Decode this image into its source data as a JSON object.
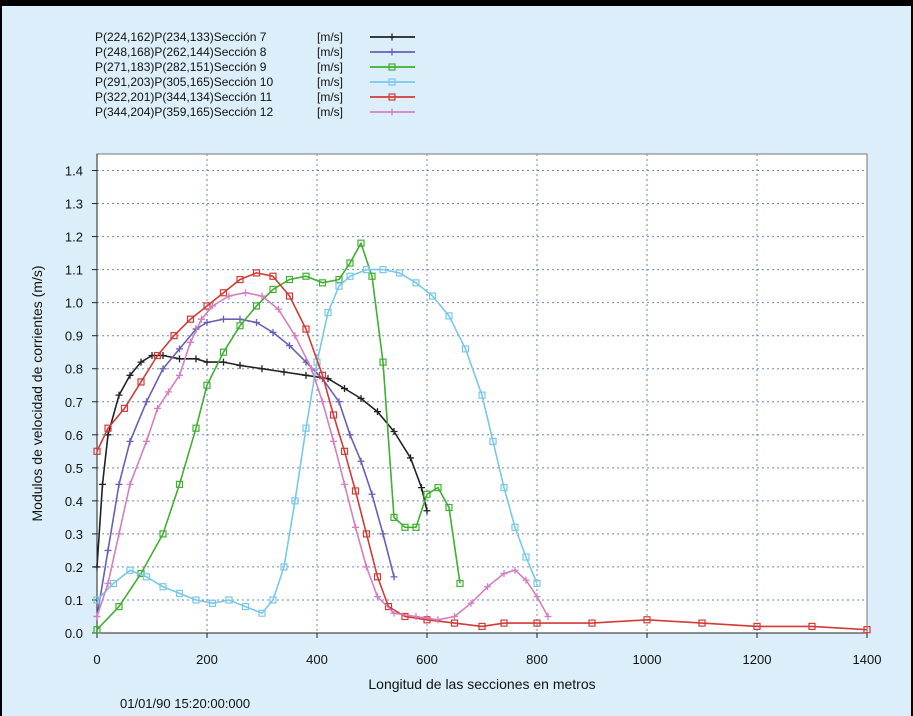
{
  "chart_data": {
    "type": "line",
    "xlabel": "Longitud de las secciones en metros",
    "ylabel": "Modulos de velocidad de corrientes  (m/s)",
    "xlim": [
      0,
      1400
    ],
    "ylim": [
      0,
      1.45
    ],
    "xticks": [
      "0",
      "200",
      "400",
      "600",
      "800",
      "1000",
      "1200",
      "1400"
    ],
    "yticks": [
      "0.0",
      "0.1",
      "0.2",
      "0.3",
      "0.4",
      "0.5",
      "0.6",
      "0.7",
      "0.8",
      "0.9",
      "1.0",
      "1.1",
      "1.2",
      "1.3",
      "1.4"
    ],
    "grid": true,
    "legend_position": "top-left",
    "footer": "01/01/90 15:20:00:000",
    "series": [
      {
        "name": "P(224,162)P(234,133)Sección 7",
        "unit": "[m/s]",
        "color": "#222222",
        "marker": "plus",
        "points": [
          [
            0,
            0.2
          ],
          [
            10,
            0.45
          ],
          [
            20,
            0.6
          ],
          [
            40,
            0.72
          ],
          [
            60,
            0.78
          ],
          [
            80,
            0.82
          ],
          [
            100,
            0.84
          ],
          [
            120,
            0.84
          ],
          [
            150,
            0.83
          ],
          [
            180,
            0.83
          ],
          [
            200,
            0.82
          ],
          [
            230,
            0.82
          ],
          [
            260,
            0.81
          ],
          [
            300,
            0.8
          ],
          [
            340,
            0.79
          ],
          [
            380,
            0.78
          ],
          [
            420,
            0.77
          ],
          [
            450,
            0.74
          ],
          [
            480,
            0.71
          ],
          [
            510,
            0.67
          ],
          [
            540,
            0.61
          ],
          [
            570,
            0.53
          ],
          [
            590,
            0.44
          ],
          [
            600,
            0.37
          ]
        ]
      },
      {
        "name": "P(248,168)P(262,144)Sección 8",
        "unit": "[m/s]",
        "color": "#6a5fb5",
        "marker": "plus",
        "points": [
          [
            0,
            0.05
          ],
          [
            20,
            0.25
          ],
          [
            40,
            0.45
          ],
          [
            60,
            0.58
          ],
          [
            90,
            0.7
          ],
          [
            120,
            0.8
          ],
          [
            150,
            0.86
          ],
          [
            180,
            0.92
          ],
          [
            200,
            0.94
          ],
          [
            230,
            0.95
          ],
          [
            260,
            0.95
          ],
          [
            290,
            0.94
          ],
          [
            320,
            0.91
          ],
          [
            350,
            0.87
          ],
          [
            380,
            0.82
          ],
          [
            410,
            0.77
          ],
          [
            440,
            0.7
          ],
          [
            460,
            0.6
          ],
          [
            480,
            0.52
          ],
          [
            500,
            0.42
          ],
          [
            520,
            0.3
          ],
          [
            540,
            0.17
          ]
        ]
      },
      {
        "name": "P(271,183)P(282,151)Sección 9",
        "unit": "[m/s]",
        "color": "#3fb02f",
        "marker": "square",
        "points": [
          [
            0,
            0.01
          ],
          [
            40,
            0.08
          ],
          [
            80,
            0.18
          ],
          [
            120,
            0.3
          ],
          [
            150,
            0.45
          ],
          [
            180,
            0.62
          ],
          [
            200,
            0.75
          ],
          [
            230,
            0.85
          ],
          [
            260,
            0.93
          ],
          [
            290,
            0.99
          ],
          [
            320,
            1.04
          ],
          [
            350,
            1.07
          ],
          [
            380,
            1.08
          ],
          [
            410,
            1.06
          ],
          [
            440,
            1.07
          ],
          [
            460,
            1.12
          ],
          [
            480,
            1.18
          ],
          [
            500,
            1.08
          ],
          [
            520,
            0.82
          ],
          [
            540,
            0.35
          ],
          [
            560,
            0.32
          ],
          [
            580,
            0.32
          ],
          [
            600,
            0.42
          ],
          [
            620,
            0.44
          ],
          [
            640,
            0.38
          ],
          [
            660,
            0.15
          ]
        ]
      },
      {
        "name": "P(291,203)P(305,165)Sección 10",
        "unit": "[m/s]",
        "color": "#79c8ea",
        "marker": "square",
        "points": [
          [
            0,
            0.1
          ],
          [
            30,
            0.15
          ],
          [
            60,
            0.19
          ],
          [
            90,
            0.17
          ],
          [
            120,
            0.14
          ],
          [
            150,
            0.12
          ],
          [
            180,
            0.1
          ],
          [
            210,
            0.09
          ],
          [
            240,
            0.1
          ],
          [
            270,
            0.08
          ],
          [
            300,
            0.06
          ],
          [
            320,
            0.1
          ],
          [
            340,
            0.2
          ],
          [
            360,
            0.4
          ],
          [
            380,
            0.62
          ],
          [
            400,
            0.82
          ],
          [
            420,
            0.97
          ],
          [
            440,
            1.05
          ],
          [
            460,
            1.08
          ],
          [
            490,
            1.1
          ],
          [
            520,
            1.1
          ],
          [
            550,
            1.09
          ],
          [
            580,
            1.06
          ],
          [
            610,
            1.02
          ],
          [
            640,
            0.96
          ],
          [
            670,
            0.86
          ],
          [
            700,
            0.72
          ],
          [
            720,
            0.58
          ],
          [
            740,
            0.44
          ],
          [
            760,
            0.32
          ],
          [
            780,
            0.23
          ],
          [
            800,
            0.15
          ]
        ]
      },
      {
        "name": "P(322,201)P(344,134)Sección 11",
        "unit": "[m/s]",
        "color": "#d23b36",
        "marker": "square",
        "points": [
          [
            0,
            0.55
          ],
          [
            20,
            0.62
          ],
          [
            50,
            0.68
          ],
          [
            80,
            0.76
          ],
          [
            110,
            0.84
          ],
          [
            140,
            0.9
          ],
          [
            170,
            0.95
          ],
          [
            200,
            0.99
          ],
          [
            230,
            1.03
          ],
          [
            260,
            1.07
          ],
          [
            290,
            1.09
          ],
          [
            320,
            1.08
          ],
          [
            350,
            1.02
          ],
          [
            380,
            0.92
          ],
          [
            410,
            0.78
          ],
          [
            430,
            0.66
          ],
          [
            450,
            0.55
          ],
          [
            470,
            0.43
          ],
          [
            490,
            0.3
          ],
          [
            510,
            0.17
          ],
          [
            530,
            0.08
          ],
          [
            560,
            0.05
          ],
          [
            600,
            0.04
          ],
          [
            650,
            0.03
          ],
          [
            700,
            0.02
          ],
          [
            740,
            0.03
          ],
          [
            800,
            0.03
          ],
          [
            900,
            0.03
          ],
          [
            1000,
            0.04
          ],
          [
            1100,
            0.03
          ],
          [
            1200,
            0.02
          ],
          [
            1300,
            0.02
          ],
          [
            1400,
            0.01
          ]
        ]
      },
      {
        "name": "P(344,204)P(359,165)Sección 12",
        "unit": "[m/s]",
        "color": "#d57fc0",
        "marker": "plus",
        "points": [
          [
            0,
            0.05
          ],
          [
            20,
            0.15
          ],
          [
            40,
            0.3
          ],
          [
            60,
            0.45
          ],
          [
            90,
            0.58
          ],
          [
            110,
            0.68
          ],
          [
            130,
            0.73
          ],
          [
            150,
            0.78
          ],
          [
            170,
            0.88
          ],
          [
            190,
            0.95
          ],
          [
            210,
            0.99
          ],
          [
            240,
            1.02
          ],
          [
            270,
            1.03
          ],
          [
            300,
            1.02
          ],
          [
            330,
            0.98
          ],
          [
            360,
            0.9
          ],
          [
            390,
            0.8
          ],
          [
            410,
            0.7
          ],
          [
            430,
            0.58
          ],
          [
            450,
            0.45
          ],
          [
            470,
            0.32
          ],
          [
            490,
            0.2
          ],
          [
            510,
            0.11
          ],
          [
            540,
            0.06
          ],
          [
            580,
            0.05
          ],
          [
            620,
            0.04
          ],
          [
            650,
            0.05
          ],
          [
            680,
            0.09
          ],
          [
            710,
            0.14
          ],
          [
            740,
            0.18
          ],
          [
            760,
            0.19
          ],
          [
            780,
            0.16
          ],
          [
            800,
            0.11
          ],
          [
            820,
            0.05
          ]
        ]
      }
    ]
  }
}
